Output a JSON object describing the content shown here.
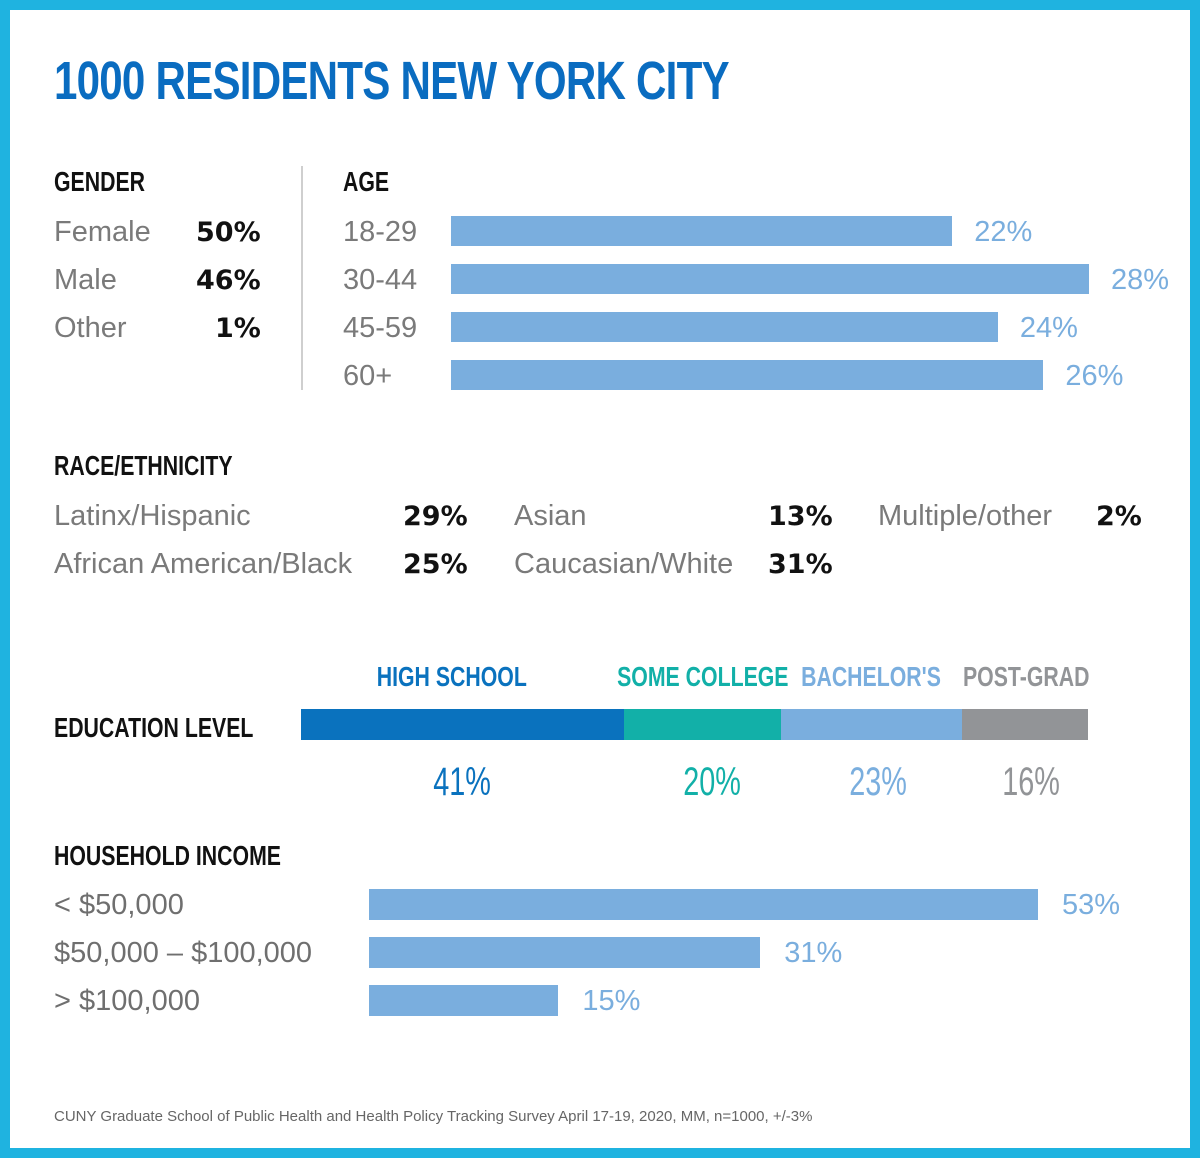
{
  "title": "1000 RESIDENTS NEW YORK CITY",
  "source": "CUNY Graduate School of Public Health and Health Policy Tracking Survey April 17-19, 2020, MM, n=1000, +/-3%",
  "colors": {
    "border": "#1fb3e0",
    "title": "#0a6cc0",
    "bar": "#7aaede",
    "high_school": "#0a72be",
    "some_college": "#12b0a8",
    "bachelors": "#7aaede",
    "post_grad": "#929497"
  },
  "chart_data": [
    {
      "type": "table",
      "title": "GENDER",
      "categories": [
        "Female",
        "Male",
        "Other"
      ],
      "labels": [
        "50%",
        "46%",
        "1%"
      ],
      "values": [
        50,
        46,
        1
      ]
    },
    {
      "type": "bar",
      "orientation": "horizontal",
      "title": "AGE",
      "categories": [
        "18-29",
        "30-44",
        "45-59",
        "60+"
      ],
      "labels": [
        "22%",
        "28%",
        "24%",
        "26%"
      ],
      "values": [
        22,
        28,
        24,
        26
      ]
    },
    {
      "type": "table",
      "title": "RACE/ETHNICITY",
      "categories": [
        "Latinx/Hispanic",
        "African American/Black",
        "Asian",
        "Caucasian/White",
        "Multiple/other"
      ],
      "labels": [
        "29%",
        "25%",
        "13%",
        "31%",
        "2%"
      ],
      "values": [
        29,
        25,
        13,
        31,
        2
      ]
    },
    {
      "type": "bar",
      "orientation": "horizontal",
      "stacked": true,
      "title": "EDUCATION LEVEL",
      "categories": [
        "HIGH SCHOOL",
        "SOME COLLEGE",
        "BACHELOR'S",
        "POST-GRAD"
      ],
      "labels": [
        "41%",
        "20%",
        "23%",
        "16%"
      ],
      "values": [
        41,
        20,
        23,
        16
      ]
    },
    {
      "type": "bar",
      "orientation": "horizontal",
      "title": "HOUSEHOLD INCOME",
      "categories": [
        "< $50,000",
        "$50,000 – $100,000",
        "> $100,000"
      ],
      "labels": [
        "53%",
        "31%",
        "15%"
      ],
      "values": [
        53,
        31,
        15
      ]
    }
  ]
}
